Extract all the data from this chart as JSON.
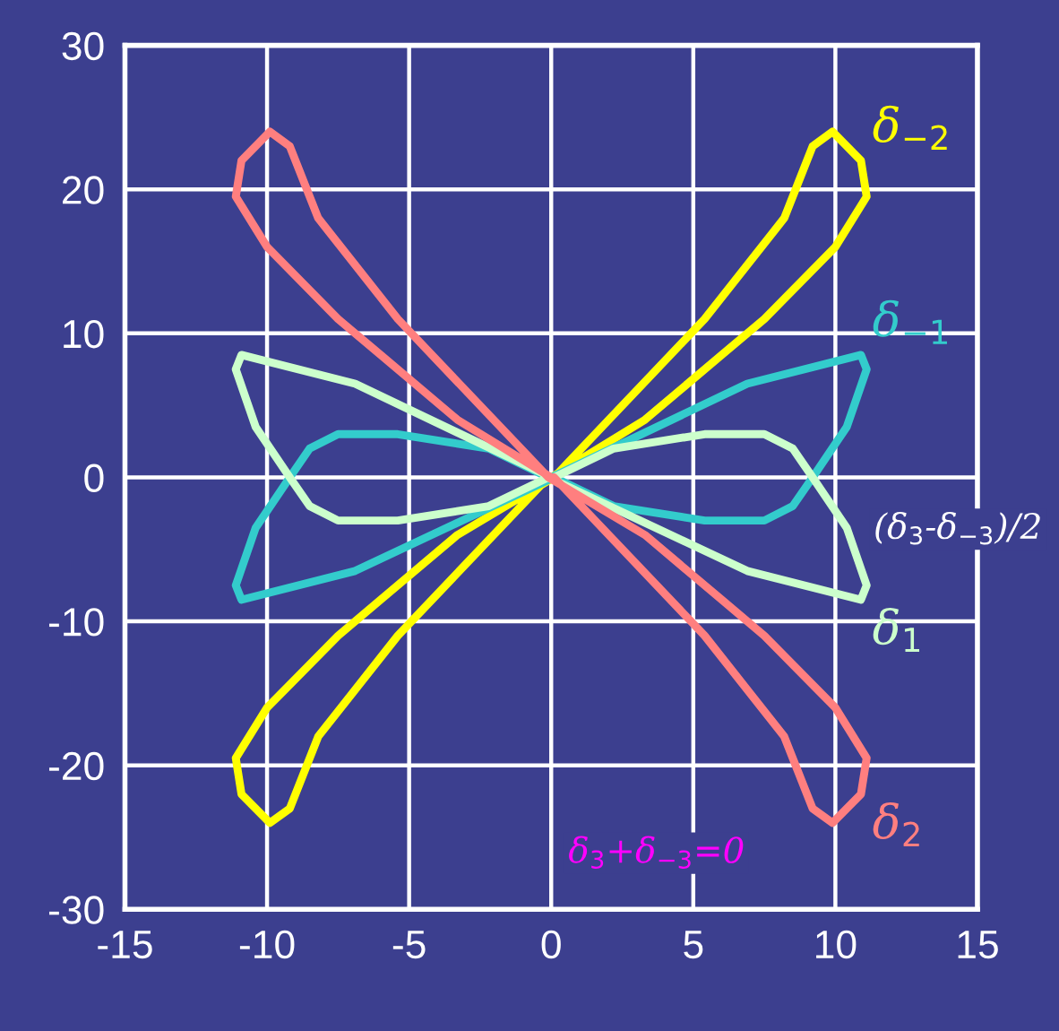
{
  "chart_data": {
    "type": "line",
    "xlim": [
      -15,
      15
    ],
    "ylim": [
      -30,
      30
    ],
    "xticks": [
      -15,
      -10,
      -5,
      0,
      5,
      10,
      15
    ],
    "yticks": [
      -30,
      -20,
      -10,
      0,
      10,
      20,
      30
    ],
    "grid": true,
    "legend": false,
    "marker": "none",
    "line_style": "solid",
    "series": [
      {
        "name": "δ$_{−2}$",
        "color": "#ffff00",
        "x": [
          0,
          3.3,
          6,
          7.5,
          10,
          11.1,
          10.9,
          9.9,
          9.2,
          8.2,
          5.4,
          0.1,
          -3.3,
          -6,
          -7.5,
          -10,
          -11.1,
          -10.9,
          -9.9,
          -9.2,
          -8.2,
          -5.4,
          -0.1
        ],
        "values": [
          0,
          4,
          8.5,
          11,
          16,
          19.5,
          22,
          24,
          23,
          18,
          11,
          0,
          -4,
          -8.5,
          -11,
          -16,
          -19.5,
          -22,
          -24,
          -23,
          -18,
          -11,
          0
        ]
      },
      {
        "name": "δ$_{−1}$",
        "color": "#33cccc",
        "x": [
          0,
          6.9,
          10.9,
          11.1,
          10.4,
          9.2,
          8.5,
          7.5,
          5.4,
          2.2,
          0.1,
          -6.9,
          -10.9,
          -11.1,
          -10.4,
          -9.2,
          -8.5,
          -7.5,
          -5.4,
          -2.2,
          -0.1
        ],
        "values": [
          0,
          6.5,
          8.5,
          7.5,
          3.5,
          0,
          -2,
          -3,
          -3,
          -2,
          0,
          -6.5,
          -8.5,
          -7.5,
          -3.5,
          0,
          2,
          3,
          3,
          2,
          0
        ]
      },
      {
        "name": "δ$_{1}$",
        "color": "#ccffcc",
        "x": [
          0,
          -6.9,
          -10.9,
          -11.1,
          -10.4,
          -9.2,
          -8.5,
          -7.5,
          -5.4,
          -2.2,
          -0.1,
          6.9,
          10.9,
          11.1,
          10.4,
          9.2,
          8.5,
          7.5,
          5.4,
          2.2,
          0.1
        ],
        "values": [
          0,
          6.5,
          8.5,
          7.5,
          3.5,
          0,
          -2,
          -3,
          -3,
          -2,
          0,
          -6.5,
          -8.5,
          -7.5,
          -3.5,
          0,
          2,
          3,
          3,
          2,
          0
        ]
      },
      {
        "name": "δ$_{2}$",
        "color": "#ff7f7f",
        "x": [
          0,
          -3.3,
          -6,
          -7.5,
          -10,
          -11.1,
          -10.9,
          -9.9,
          -9.2,
          -8.2,
          -5.4,
          -0.1,
          3.3,
          6,
          7.5,
          10,
          11.1,
          10.9,
          9.9,
          9.2,
          8.2,
          5.4,
          0.1
        ],
        "values": [
          0,
          4,
          8.5,
          11,
          16,
          19.5,
          22,
          24,
          23,
          18,
          11,
          0,
          -4,
          -8.5,
          -11,
          -16,
          -19.5,
          -22,
          -24,
          -23,
          -18,
          -11,
          0
        ]
      }
    ],
    "annotations": [
      "(δ$_{3}$-δ$_{−3}$)/2",
      "δ$_{3}$+δ$_{−3}$=0"
    ]
  }
}
